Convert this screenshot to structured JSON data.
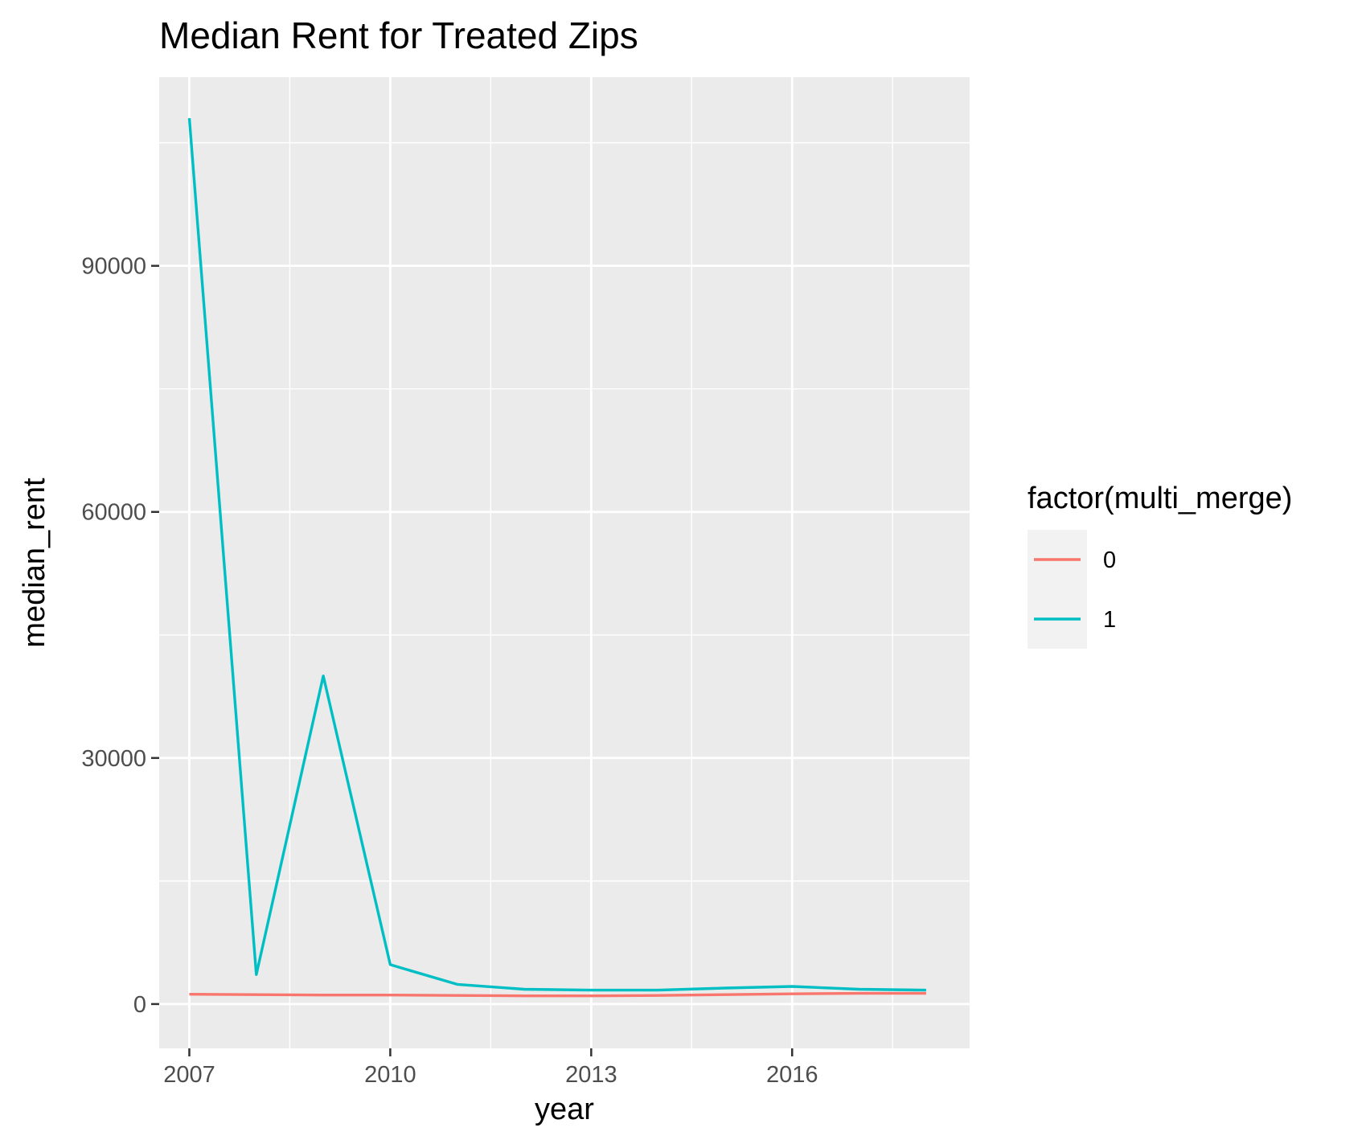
{
  "chart_data": {
    "type": "line",
    "title": "Median Rent for Treated Zips",
    "xlabel": "year",
    "ylabel": "median_rent",
    "x": [
      2007,
      2008,
      2009,
      2010,
      2011,
      2012,
      2013,
      2014,
      2015,
      2016,
      2017,
      2018
    ],
    "xlim": [
      2006.55,
      2018.65
    ],
    "ylim": [
      -5400,
      113000
    ],
    "x_ticks": [
      2007,
      2010,
      2013,
      2016
    ],
    "x_tick_labels": [
      "2007",
      "2010",
      "2013",
      "2016"
    ],
    "y_ticks": [
      0,
      30000,
      60000,
      90000
    ],
    "y_tick_labels": [
      "0",
      "30000",
      "60000",
      "90000"
    ],
    "grid": true,
    "legend": {
      "title": "factor(multi_merge)",
      "position": "right"
    },
    "series": [
      {
        "name": "0",
        "color": "#F8766D",
        "values": [
          1200,
          1150,
          1100,
          1100,
          1050,
          1000,
          1000,
          1050,
          1150,
          1250,
          1300,
          1300
        ]
      },
      {
        "name": "1",
        "color": "#00BFC4",
        "values": [
          108000,
          3600,
          40000,
          4800,
          2400,
          1800,
          1700,
          1700,
          1950,
          2150,
          1800,
          1700
        ]
      }
    ]
  }
}
